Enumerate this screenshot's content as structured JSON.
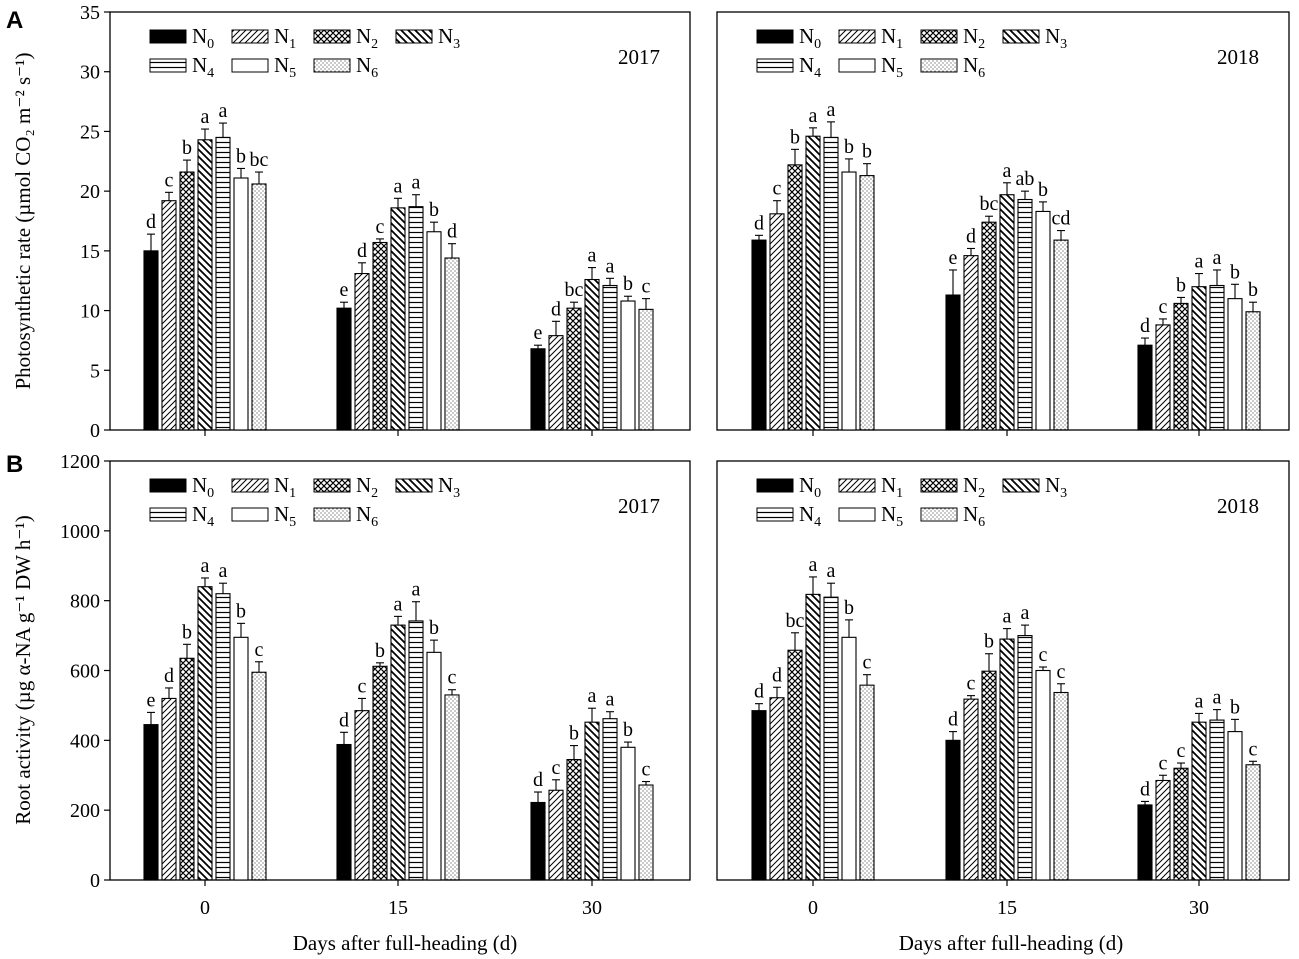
{
  "panel_labels": [
    "A",
    "B"
  ],
  "colors": {
    "ink": "#000000",
    "bar_outline": "#000000",
    "background": "#ffffff"
  },
  "chart_data": [
    {
      "type": "bar",
      "panel": "A",
      "year": "2017",
      "ylabel": "Photosynthetic rate (µmol CO₂ m⁻² s⁻¹)",
      "xlabel": "",
      "ylim": [
        0,
        35
      ],
      "yticks": [
        0,
        5,
        10,
        15,
        20,
        25,
        30,
        35
      ],
      "categories": [
        "0",
        "15",
        "30"
      ],
      "legend": [
        "N0",
        "N1",
        "N2",
        "N3",
        "N4",
        "N5",
        "N6"
      ],
      "series": [
        {
          "name": "N0",
          "values": [
            15.0,
            10.2,
            6.8
          ],
          "errors": [
            1.4,
            0.5,
            0.3
          ],
          "letters": [
            "d",
            "e",
            "e"
          ]
        },
        {
          "name": "N1",
          "values": [
            19.2,
            13.1,
            7.9
          ],
          "errors": [
            0.7,
            0.9,
            1.2
          ],
          "letters": [
            "c",
            "d",
            "d"
          ]
        },
        {
          "name": "N2",
          "values": [
            21.6,
            15.7,
            10.2
          ],
          "errors": [
            1.0,
            0.3,
            0.5
          ],
          "letters": [
            "b",
            "c",
            "bc"
          ]
        },
        {
          "name": "N3",
          "values": [
            24.3,
            18.6,
            12.6
          ],
          "errors": [
            0.9,
            0.8,
            1.0
          ],
          "letters": [
            "a",
            "a",
            "a"
          ]
        },
        {
          "name": "N4",
          "values": [
            24.5,
            18.7,
            12.1
          ],
          "errors": [
            1.2,
            1.0,
            0.6
          ],
          "letters": [
            "a",
            "a",
            "a"
          ]
        },
        {
          "name": "N5",
          "values": [
            21.1,
            16.6,
            10.8
          ],
          "errors": [
            0.8,
            0.8,
            0.4
          ],
          "letters": [
            "b",
            "b",
            "b"
          ]
        },
        {
          "name": "N6",
          "values": [
            20.6,
            14.4,
            10.1
          ],
          "errors": [
            1.0,
            1.2,
            0.9
          ],
          "letters": [
            "bc",
            "d",
            "c"
          ]
        }
      ]
    },
    {
      "type": "bar",
      "panel": "A",
      "year": "2018",
      "ylabel": "",
      "xlabel": "",
      "ylim": [
        0,
        35
      ],
      "yticks": [],
      "categories": [
        "0",
        "15",
        "30"
      ],
      "legend": [
        "N0",
        "N1",
        "N2",
        "N3",
        "N4",
        "N5",
        "N6"
      ],
      "series": [
        {
          "name": "N0",
          "values": [
            15.9,
            11.3,
            7.1
          ],
          "errors": [
            0.4,
            2.1,
            0.6
          ],
          "letters": [
            "d",
            "e",
            "d"
          ]
        },
        {
          "name": "N1",
          "values": [
            18.1,
            14.6,
            8.8
          ],
          "errors": [
            1.1,
            0.6,
            0.5
          ],
          "letters": [
            "c",
            "d",
            "c"
          ]
        },
        {
          "name": "N2",
          "values": [
            22.2,
            17.4,
            10.6
          ],
          "errors": [
            1.3,
            0.5,
            0.5
          ],
          "letters": [
            "b",
            "bc",
            "b"
          ]
        },
        {
          "name": "N3",
          "values": [
            24.6,
            19.7,
            12.0
          ],
          "errors": [
            0.7,
            1.0,
            1.1
          ],
          "letters": [
            "a",
            "a",
            "a"
          ]
        },
        {
          "name": "N4",
          "values": [
            24.5,
            19.3,
            12.1
          ],
          "errors": [
            1.3,
            0.7,
            1.3
          ],
          "letters": [
            "a",
            "ab",
            "a"
          ]
        },
        {
          "name": "N5",
          "values": [
            21.6,
            18.3,
            11.0
          ],
          "errors": [
            1.1,
            0.8,
            1.2
          ],
          "letters": [
            "b",
            "b",
            "b"
          ]
        },
        {
          "name": "N6",
          "values": [
            21.3,
            15.9,
            9.9
          ],
          "errors": [
            1.0,
            0.8,
            0.8
          ],
          "letters": [
            "b",
            "cd",
            "b"
          ]
        }
      ]
    },
    {
      "type": "bar",
      "panel": "B",
      "year": "2017",
      "ylabel": "Root activity (µg α-NA g⁻¹ DW h⁻¹)",
      "xlabel": "Days after full-heading (d)",
      "ylim": [
        0,
        1200
      ],
      "yticks": [
        0,
        200,
        400,
        600,
        800,
        1000,
        1200
      ],
      "categories": [
        "0",
        "15",
        "30"
      ],
      "legend": [
        "N0",
        "N1",
        "N2",
        "N3",
        "N4",
        "N5",
        "N6"
      ],
      "series": [
        {
          "name": "N0",
          "values": [
            445,
            388,
            222
          ],
          "errors": [
            35,
            35,
            30
          ],
          "letters": [
            "e",
            "d",
            "d"
          ]
        },
        {
          "name": "N1",
          "values": [
            520,
            485,
            257
          ],
          "errors": [
            30,
            35,
            30
          ],
          "letters": [
            "d",
            "c",
            "c"
          ]
        },
        {
          "name": "N2",
          "values": [
            635,
            612,
            345
          ],
          "errors": [
            40,
            10,
            40
          ],
          "letters": [
            "b",
            "b",
            "b"
          ]
        },
        {
          "name": "N3",
          "values": [
            840,
            730,
            452
          ],
          "errors": [
            25,
            25,
            40
          ],
          "letters": [
            "a",
            "a",
            "a"
          ]
        },
        {
          "name": "N4",
          "values": [
            820,
            742,
            462
          ],
          "errors": [
            30,
            55,
            20
          ],
          "letters": [
            "a",
            "a",
            "a"
          ]
        },
        {
          "name": "N5",
          "values": [
            695,
            652,
            380
          ],
          "errors": [
            40,
            35,
            15
          ],
          "letters": [
            "b",
            "b",
            "b"
          ]
        },
        {
          "name": "N6",
          "values": [
            595,
            530,
            272
          ],
          "errors": [
            30,
            15,
            10
          ],
          "letters": [
            "c",
            "c",
            "c"
          ]
        }
      ]
    },
    {
      "type": "bar",
      "panel": "B",
      "year": "2018",
      "ylabel": "",
      "xlabel": "Days after full-heading (d)",
      "ylim": [
        0,
        1200
      ],
      "yticks": [],
      "categories": [
        "0",
        "15",
        "30"
      ],
      "legend": [
        "N0",
        "N1",
        "N2",
        "N3",
        "N4",
        "N5",
        "N6"
      ],
      "series": [
        {
          "name": "N0",
          "values": [
            485,
            400,
            215
          ],
          "errors": [
            20,
            25,
            10
          ],
          "letters": [
            "d",
            "d",
            "d"
          ]
        },
        {
          "name": "N1",
          "values": [
            522,
            518,
            285
          ],
          "errors": [
            30,
            10,
            15
          ],
          "letters": [
            "d",
            "c",
            "c"
          ]
        },
        {
          "name": "N2",
          "values": [
            658,
            598,
            320
          ],
          "errors": [
            50,
            50,
            15
          ],
          "letters": [
            "bc",
            "b",
            "c"
          ]
        },
        {
          "name": "N3",
          "values": [
            818,
            690,
            452
          ],
          "errors": [
            50,
            30,
            25
          ],
          "letters": [
            "a",
            "a",
            "a"
          ]
        },
        {
          "name": "N4",
          "values": [
            810,
            700,
            458
          ],
          "errors": [
            40,
            30,
            30
          ],
          "letters": [
            "a",
            "a",
            "a"
          ]
        },
        {
          "name": "N5",
          "values": [
            695,
            600,
            425
          ],
          "errors": [
            50,
            10,
            35
          ],
          "letters": [
            "b",
            "c",
            "b"
          ]
        },
        {
          "name": "N6",
          "values": [
            558,
            537,
            330
          ],
          "errors": [
            30,
            25,
            10
          ],
          "letters": [
            "c",
            "c",
            "c"
          ]
        }
      ]
    }
  ]
}
